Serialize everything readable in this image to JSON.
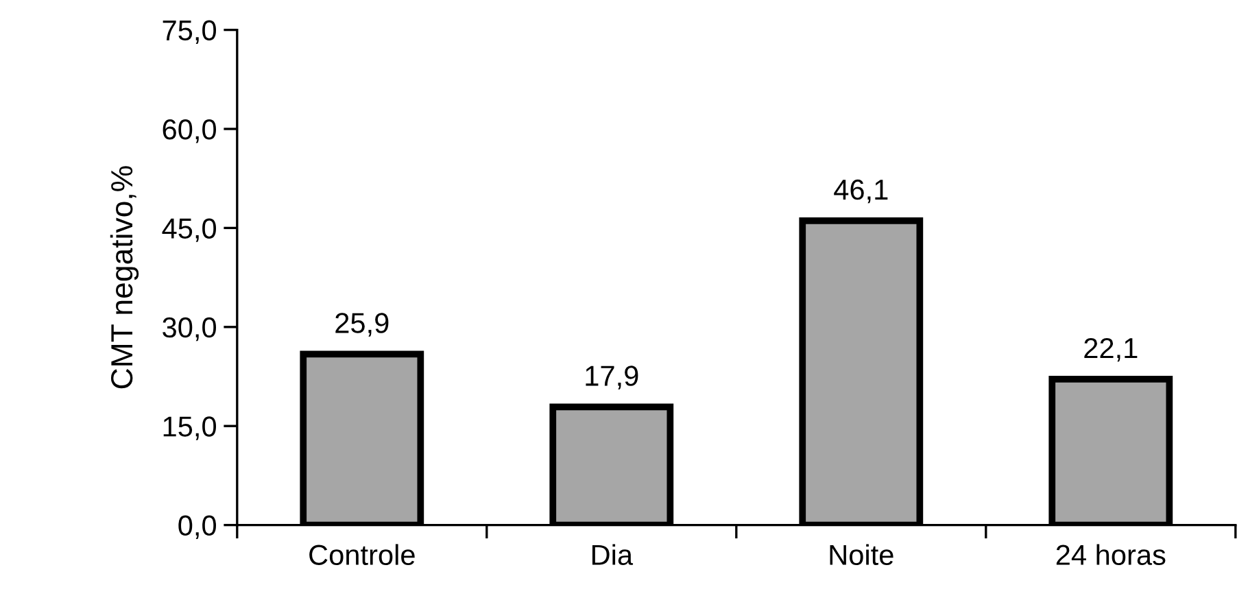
{
  "chart_data": {
    "type": "bar",
    "ylabel": "CMT negativo,%",
    "categories": [
      "Controle",
      "Dia",
      "Noite",
      "24 horas"
    ],
    "values": [
      25.9,
      17.9,
      46.1,
      22.1
    ],
    "value_labels": [
      "25,9",
      "17,9",
      "46,1",
      "22,1"
    ],
    "color": "#a6a6a6",
    "ylim": [
      0,
      75
    ],
    "yticks": [
      {
        "value": 0,
        "label": "0,0"
      },
      {
        "value": 15,
        "label": "15,0"
      },
      {
        "value": 30,
        "label": "30,0"
      },
      {
        "value": 45,
        "label": "45,0"
      },
      {
        "value": 60,
        "label": "60,0"
      },
      {
        "value": 75,
        "label": "75,0"
      }
    ],
    "grid": false,
    "legend": false
  }
}
